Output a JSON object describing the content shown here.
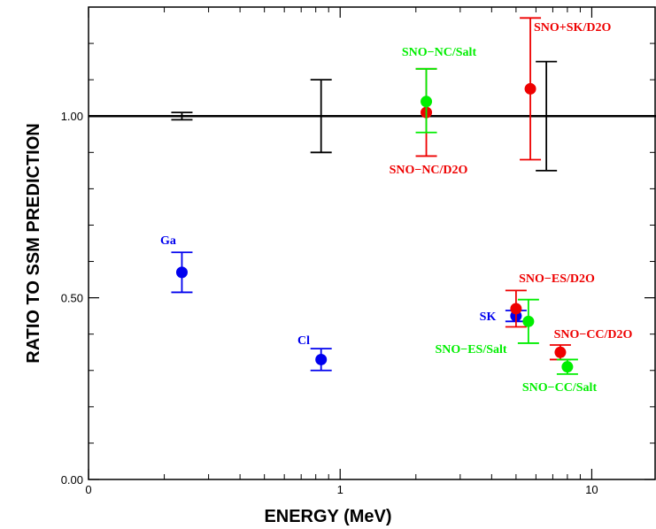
{
  "chart_data": {
    "type": "scatter",
    "xlabel": "ENERGY (MeV)",
    "ylabel": "RATIO TO SSM PREDICTION",
    "xscale": "log",
    "xlim": [
      0.1,
      18
    ],
    "ylim": [
      0.0,
      1.3
    ],
    "xtick_labels": [
      "0",
      "1",
      "10"
    ],
    "xtick_values": [
      0.1,
      1,
      10
    ],
    "ytick_labels": [
      "0.00",
      "0.50",
      "1.00"
    ],
    "ytick_values": [
      0.0,
      0.5,
      1.0
    ],
    "reference_line": 1.0,
    "colors": {
      "Ga": "#0000ee",
      "Cl": "#0000ee",
      "SK": "#0000ee",
      "D2O": "#ee0000",
      "Salt": "#00ee00",
      "theory": "#000000"
    },
    "points": [
      {
        "label": "Ga",
        "color": "#0000ee",
        "x": 0.235,
        "y": 0.57,
        "lo": 0.515,
        "hi": 0.625,
        "dot": true
      },
      {
        "label": "Cl",
        "color": "#0000ee",
        "x": 0.84,
        "y": 0.33,
        "lo": 0.3,
        "hi": 0.36,
        "dot": true
      },
      {
        "label": "SK",
        "color": "#0000ee",
        "x": 5.0,
        "y": 0.45,
        "lo": 0.435,
        "hi": 0.465,
        "dot": true
      },
      {
        "label": "SNO-ES/D2O",
        "color": "#ee0000",
        "x": 5.0,
        "y": 0.47,
        "lo": 0.42,
        "hi": 0.52,
        "dot": true
      },
      {
        "label": "SNO-ES/Salt",
        "color": "#00ee00",
        "x": 5.6,
        "y": 0.435,
        "lo": 0.375,
        "hi": 0.495,
        "dot": true
      },
      {
        "label": "SNO-CC/D2O",
        "color": "#ee0000",
        "x": 7.5,
        "y": 0.35,
        "lo": 0.33,
        "hi": 0.37,
        "dot": true
      },
      {
        "label": "SNO-CC/Salt",
        "color": "#00ee00",
        "x": 8.0,
        "y": 0.31,
        "lo": 0.29,
        "hi": 0.33,
        "dot": true
      },
      {
        "label": "SNO-NC/D2O",
        "color": "#ee0000",
        "x": 2.2,
        "y": 1.01,
        "lo": 0.89,
        "hi": 1.13,
        "dot": true
      },
      {
        "label": "SNO-NC/Salt",
        "color": "#00ee00",
        "x": 2.2,
        "y": 1.04,
        "lo": 0.955,
        "hi": 1.13,
        "dot": true
      },
      {
        "label": "SNO+SK/D2O",
        "color": "#ee0000",
        "x": 5.7,
        "y": 1.075,
        "lo": 0.88,
        "hi": 1.27,
        "dot": true
      },
      {
        "label": "",
        "color": "#000000",
        "x": 0.235,
        "y": 1.0,
        "lo": 0.99,
        "hi": 1.01,
        "dot": false
      },
      {
        "label": "",
        "color": "#000000",
        "x": 0.84,
        "y": 1.0,
        "lo": 0.9,
        "hi": 1.1,
        "dot": false
      },
      {
        "label": "",
        "color": "#000000",
        "x": 6.6,
        "y": 1.0,
        "lo": 0.85,
        "hi": 1.15,
        "dot": false
      }
    ],
    "annotations": [
      {
        "text": "Ga",
        "color": "#0000ee"
      },
      {
        "text": "Cl",
        "color": "#0000ee"
      },
      {
        "text": "SK",
        "color": "#0000ee"
      },
      {
        "text": "SNO−NC/Salt",
        "color": "#00ee00"
      },
      {
        "text": "SNO−NC/D2O",
        "color": "#ee0000"
      },
      {
        "text": "SNO+SK/D2O",
        "color": "#ee0000"
      },
      {
        "text": "SNO−ES/D2O",
        "color": "#ee0000"
      },
      {
        "text": "SNO−ES/Salt",
        "color": "#00ee00"
      },
      {
        "text": "SNO−CC/D2O",
        "color": "#ee0000"
      },
      {
        "text": "SNO−CC/Salt",
        "color": "#00ee00"
      }
    ]
  }
}
